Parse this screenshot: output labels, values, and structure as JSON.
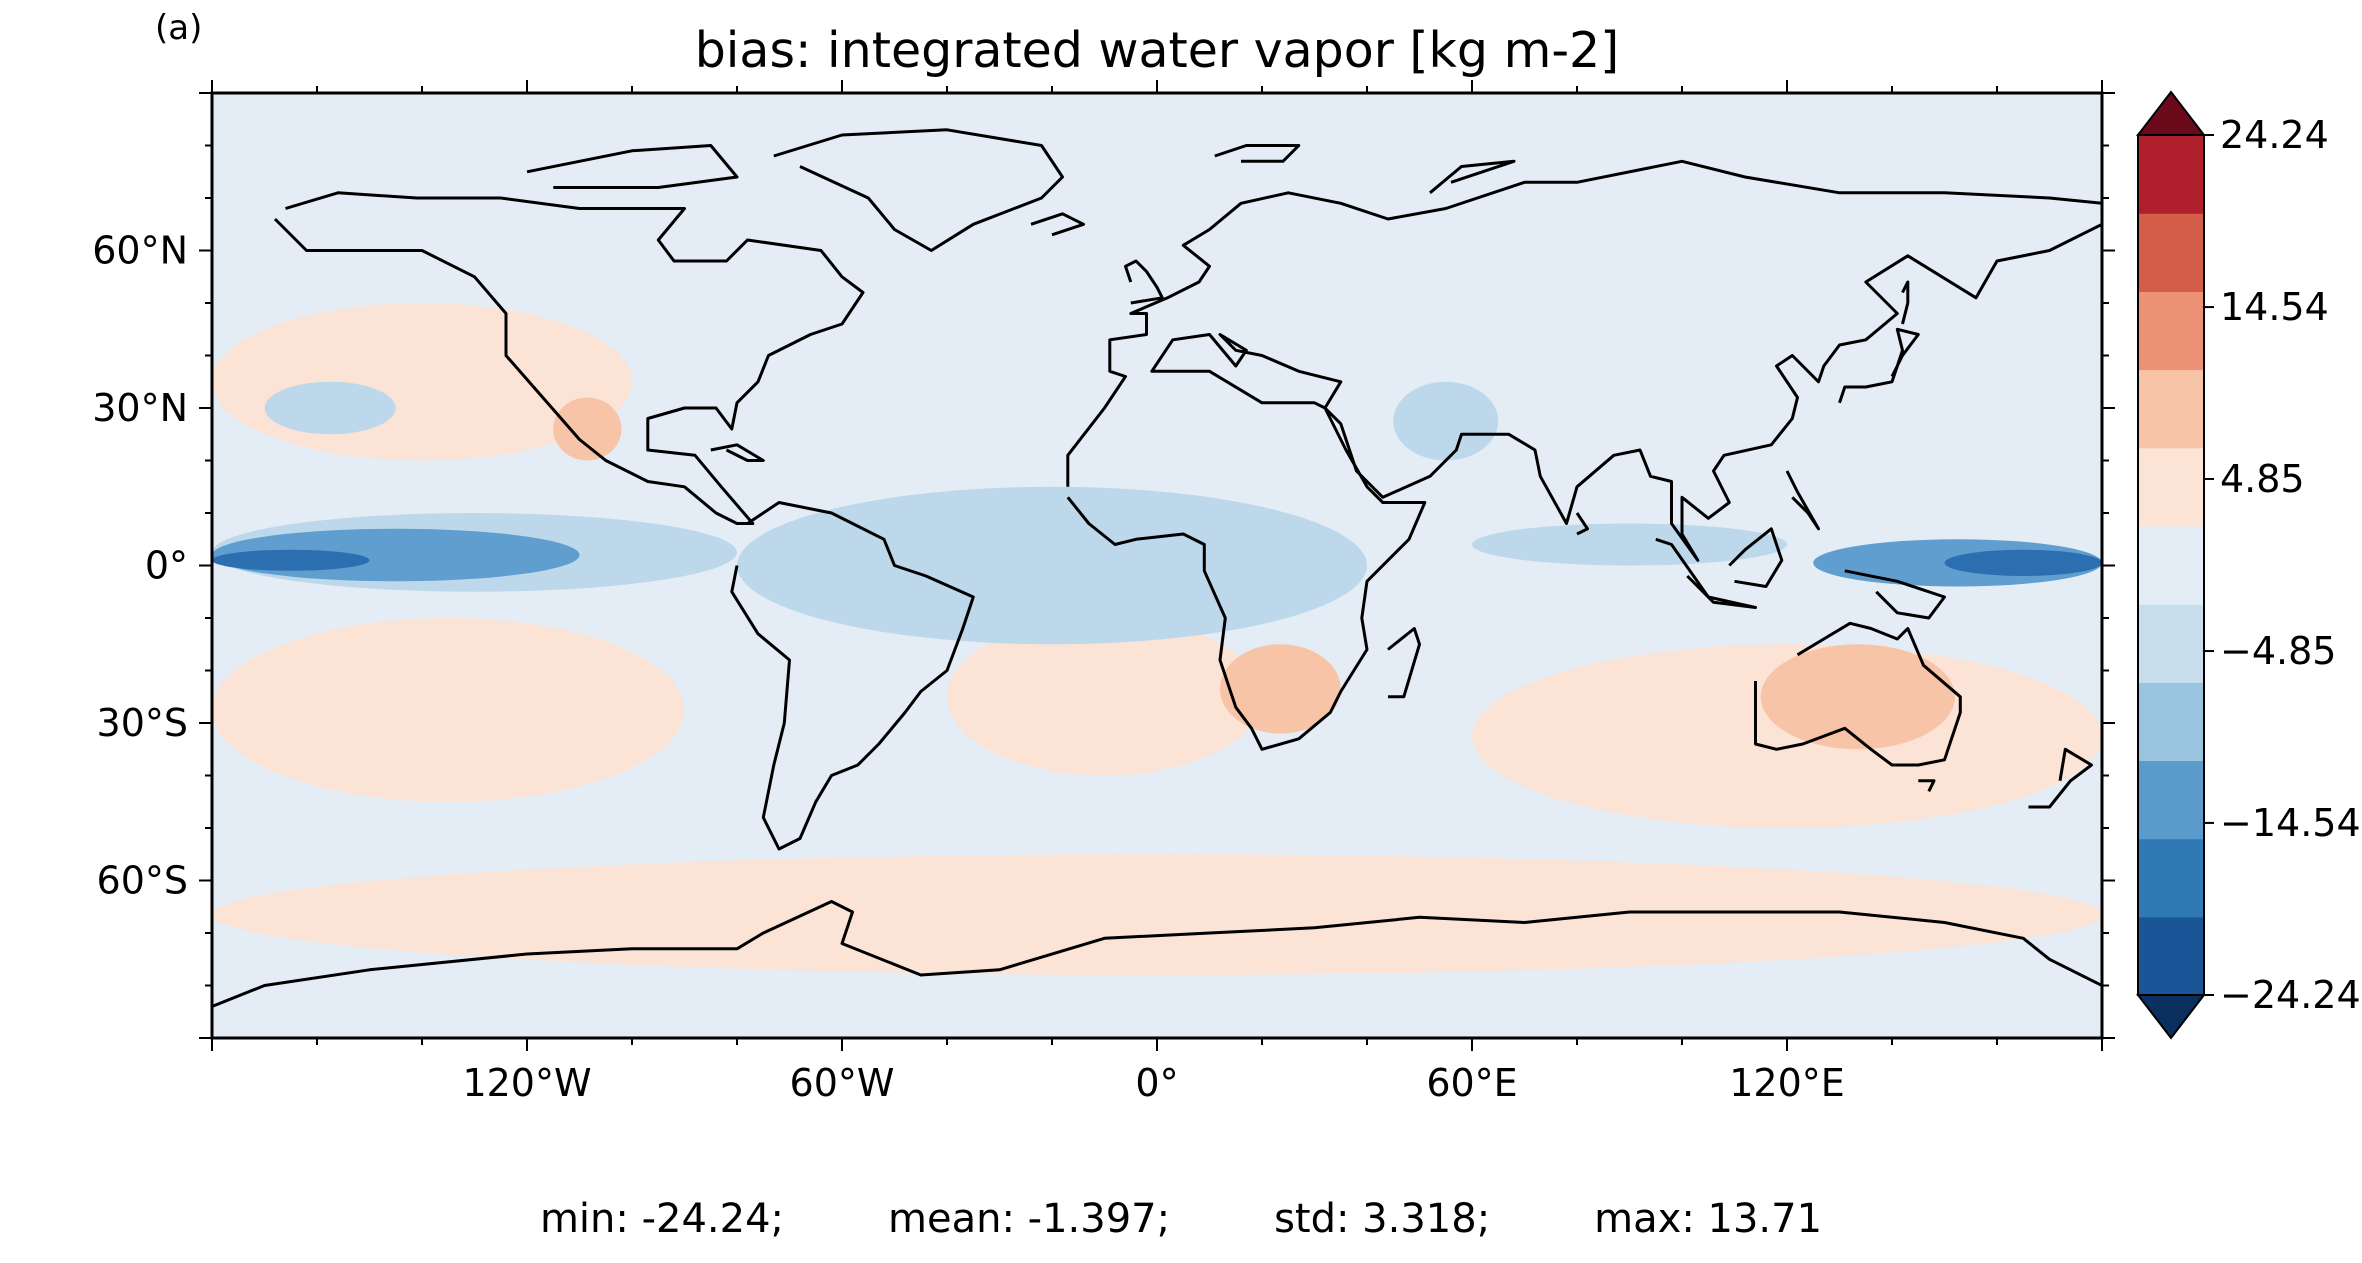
{
  "panel_label": "(a)",
  "title": "bias: integrated water vapor [kg m-2]",
  "stats": {
    "min": "min: -24.24;",
    "mean": "mean: -1.397;",
    "std": "std: 3.318;",
    "max": "max: 13.71"
  },
  "map": {
    "projection": "plate-carree",
    "lon_range": [
      -180,
      180
    ],
    "lat_range": [
      -90,
      90
    ],
    "lon_ticks": [
      {
        "value": -120,
        "label": "120°W"
      },
      {
        "value": -60,
        "label": "60°W"
      },
      {
        "value": 0,
        "label": "0°"
      },
      {
        "value": 60,
        "label": "60°E"
      },
      {
        "value": 120,
        "label": "120°E"
      }
    ],
    "lat_ticks": [
      {
        "value": 60,
        "label": "60°N"
      },
      {
        "value": 30,
        "label": "30°N"
      },
      {
        "value": 0,
        "label": "0°"
      },
      {
        "value": -30,
        "label": "30°S"
      },
      {
        "value": -60,
        "label": "60°S"
      }
    ],
    "coastline_color": "#000000",
    "background_color": "#e4edf5",
    "bias_regions": [
      {
        "sign": "positive",
        "level": 1,
        "color": "#fbe3d6",
        "lon": [
          -180,
          -100
        ],
        "lat": [
          20,
          50
        ],
        "note": "North Pacific subtropics"
      },
      {
        "sign": "positive",
        "level": 1,
        "color": "#fbe3d6",
        "lon": [
          -180,
          -90
        ],
        "lat": [
          -45,
          -10
        ],
        "note": "South Pacific subtropics"
      },
      {
        "sign": "positive",
        "level": 1,
        "color": "#fbe3d6",
        "lon": [
          -40,
          20
        ],
        "lat": [
          -40,
          -10
        ],
        "note": "South Atlantic"
      },
      {
        "sign": "positive",
        "level": 1,
        "color": "#fbe3d6",
        "lon": [
          60,
          180
        ],
        "lat": [
          -50,
          -15
        ],
        "note": "Indian Ocean / Australia"
      },
      {
        "sign": "positive",
        "level": 1,
        "color": "#fbe3d6",
        "lon": [
          -180,
          180
        ],
        "lat": [
          -78,
          -55
        ],
        "note": "Southern Ocean"
      },
      {
        "sign": "positive",
        "level": 2,
        "color": "#f8c4a8",
        "lon": [
          115,
          152
        ],
        "lat": [
          -35,
          -15
        ],
        "note": "Australia"
      },
      {
        "sign": "positive",
        "level": 2,
        "color": "#f8c4a8",
        "lon": [
          12,
          35
        ],
        "lat": [
          -32,
          -15
        ],
        "note": "Southern Africa"
      },
      {
        "sign": "positive",
        "level": 2,
        "color": "#f8c4a8",
        "lon": [
          -115,
          -102
        ],
        "lat": [
          20,
          32
        ],
        "note": "Northwest Mexico"
      },
      {
        "sign": "negative",
        "level": 1,
        "color": "#bcd8ea",
        "lon": [
          -180,
          -80
        ],
        "lat": [
          -5,
          10
        ],
        "note": "Equatorial Pacific"
      },
      {
        "sign": "negative",
        "level": 1,
        "color": "#bcd8ea",
        "lon": [
          -80,
          40
        ],
        "lat": [
          -15,
          15
        ],
        "note": "Tropical Atlantic / Africa"
      },
      {
        "sign": "negative",
        "level": 1,
        "color": "#bcd8ea",
        "lon": [
          -170,
          -145
        ],
        "lat": [
          25,
          35
        ],
        "note": "North Pacific"
      },
      {
        "sign": "negative",
        "level": 1,
        "color": "#bcd8ea",
        "lon": [
          45,
          65
        ],
        "lat": [
          20,
          35
        ],
        "note": "Arabian Peninsula"
      },
      {
        "sign": "negative",
        "level": 1,
        "color": "#bcd8ea",
        "lon": [
          60,
          120
        ],
        "lat": [
          0,
          8
        ],
        "note": "Indian Ocean equator"
      },
      {
        "sign": "negative",
        "level": 3,
        "color": "#5f9ecf",
        "lon": [
          -180,
          -110
        ],
        "lat": [
          -3,
          7
        ],
        "note": "Central Pacific ITCZ"
      },
      {
        "sign": "negative",
        "level": 4,
        "color": "#2c6fb0",
        "lon": [
          -180,
          -150
        ],
        "lat": [
          -1,
          3
        ],
        "note": "Dateline Pacific"
      },
      {
        "sign": "negative",
        "level": 3,
        "color": "#5f9ecf",
        "lon": [
          125,
          180
        ],
        "lat": [
          -4,
          5
        ],
        "note": "Western Pacific warm pool"
      },
      {
        "sign": "negative",
        "level": 4,
        "color": "#2c6fb0",
        "lon": [
          150,
          180
        ],
        "lat": [
          -2,
          3
        ],
        "note": "Western Pacific core"
      }
    ]
  },
  "colorbar": {
    "levels": [
      -24.24,
      -19.39,
      -14.54,
      -9.7,
      -4.85,
      0,
      4.85,
      9.7,
      14.54,
      19.39,
      24.24
    ],
    "colors": [
      "#1a5598",
      "#2f79b5",
      "#5a9bcb",
      "#98c4df",
      "#c9deed",
      "#e4edf5",
      "#fbe3d6",
      "#f8c4a8",
      "#ec9175",
      "#d45d4a",
      "#b01f2c"
    ],
    "extend_min_color": "#0b2f5e",
    "extend_max_color": "#6a0a1a",
    "tick_labels": [
      "24.24",
      "14.54",
      "4.85",
      "−4.85",
      "−14.54",
      "−24.24"
    ],
    "tick_values": [
      24.24,
      14.54,
      4.85,
      -4.85,
      -14.54,
      -24.24
    ]
  }
}
